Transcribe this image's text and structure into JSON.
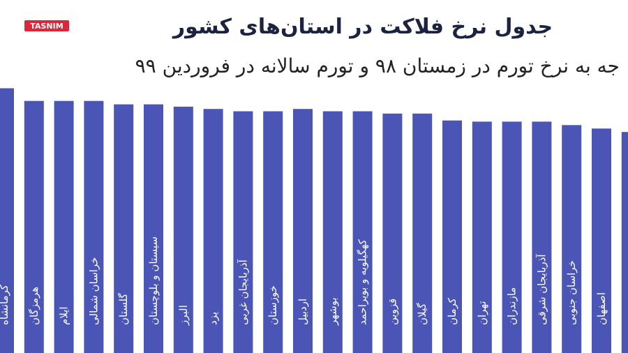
{
  "logo": "TASNIM",
  "chart_data": {
    "type": "bar",
    "title": "جدول نرخ فلاکت در استان‌های کشور",
    "subtitle": "جه به نرخ تورم در زمستان ۹۸ و تورم سالانه در فروردین ۹۹",
    "categories": [
      "کرمانشاه",
      "هرمزگان",
      "ایلام",
      "خراسان شمالی",
      "گلستان",
      "سیستان و بلوچستان",
      "البرز",
      "یزد",
      "آذربایجان غربی",
      "خوزستان",
      "اردبیل",
      "بوشهر",
      "کهگیلویه و بویراحمد",
      "قزوین",
      "گیلان",
      "کرمان",
      "تهران",
      "مازندران",
      "آذربایجان شرقی",
      "خراسان جنوبی",
      "اصفهان",
      null
    ],
    "values": [
      63.0,
      61.9,
      61.9,
      61.9,
      61.6,
      61.6,
      61.4,
      61.2,
      61.0,
      61.0,
      61.2,
      61.0,
      61.0,
      60.8,
      60.8,
      60.2,
      60.1,
      60.1,
      60.1,
      59.8,
      59.5,
      59.2
    ],
    "color": "#4b55b5",
    "ylim": [
      40,
      64
    ]
  }
}
